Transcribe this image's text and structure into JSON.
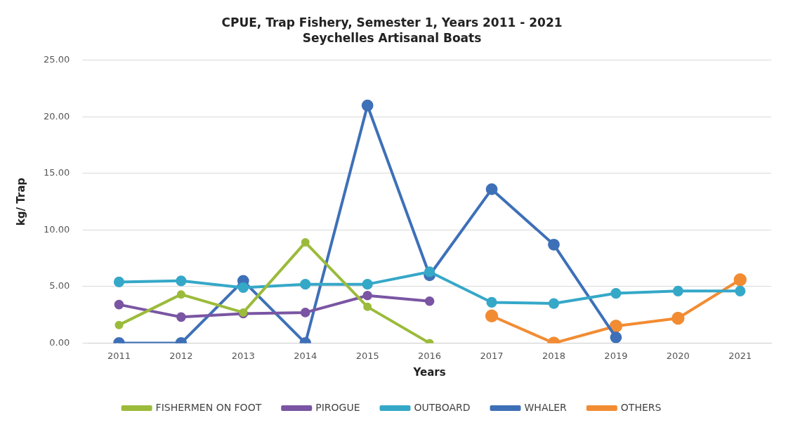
{
  "chart_data": {
    "type": "line",
    "title": "CPUE, Trap Fishery, Semester 1, Years 2011 - 2021",
    "subtitle": "Seychelles Artisanal Boats",
    "xlabel": "Years",
    "ylabel": "kg/ Trap",
    "categories": [
      "2011",
      "2012",
      "2013",
      "2014",
      "2015",
      "2016",
      "2017",
      "2018",
      "2019",
      "2020",
      "2021"
    ],
    "series": [
      {
        "name": "FISHERMEN ON FOOT",
        "color": "#9bbb3b",
        "values": [
          1.6,
          4.3,
          2.7,
          8.9,
          3.2,
          0,
          null,
          null,
          null,
          null,
          null
        ]
      },
      {
        "name": "PIROGUE",
        "color": "#7a55a3",
        "values": [
          3.4,
          2.3,
          2.6,
          2.7,
          4.2,
          3.7,
          null,
          null,
          null,
          null,
          null
        ]
      },
      {
        "name": "OUTBOARD",
        "color": "#35a8c8",
        "values": [
          5.4,
          5.5,
          4.9,
          5.2,
          5.2,
          6.3,
          3.6,
          3.5,
          4.4,
          4.6,
          4.6
        ]
      },
      {
        "name": "WHALER",
        "color": "#3e70b8",
        "values": [
          0,
          0,
          5.5,
          0,
          21.0,
          6.0,
          13.6,
          8.7,
          0.5,
          null,
          null
        ]
      },
      {
        "name": "OTHERS",
        "color": "#f28c33",
        "values": [
          null,
          null,
          null,
          null,
          null,
          null,
          2.4,
          0,
          1.5,
          2.2,
          5.6
        ]
      }
    ],
    "ylim": [
      0,
      25
    ],
    "yticks": [
      {
        "value": 0,
        "label": "0.00"
      },
      {
        "value": 5,
        "label": "5.00"
      },
      {
        "value": 10,
        "label": "10.00"
      },
      {
        "value": 15,
        "label": "15.00"
      },
      {
        "value": 20,
        "label": "20.00"
      },
      {
        "value": 25,
        "label": "25.00"
      }
    ],
    "grid": "y",
    "legend": "bottom",
    "marker": "circle",
    "line_style": "solid"
  }
}
